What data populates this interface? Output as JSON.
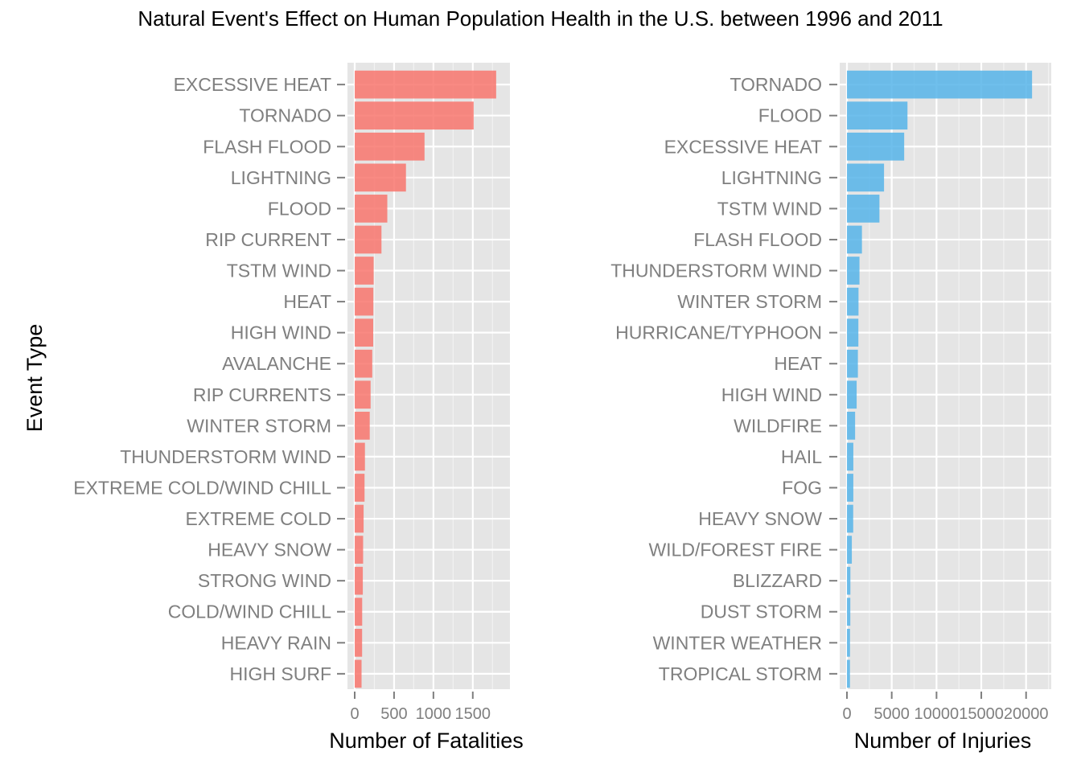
{
  "title": "Natural Event's Effect on Human Population Health in the U.S. between 1996 and 2011",
  "y_axis_title": "Event Type",
  "chart_data": [
    {
      "type": "bar",
      "orientation": "horizontal",
      "xlabel": "Number of Fatalities",
      "ylabel": "Event Type",
      "color": "#F8766D",
      "xlim": [
        0,
        1880
      ],
      "xticks": [
        0,
        500,
        1000,
        1500
      ],
      "xtick_labels": [
        "0",
        "500",
        "1000",
        "1500"
      ],
      "grid": true,
      "categories": [
        "EXCESSIVE HEAT",
        "TORNADO",
        "FLASH FLOOD",
        "LIGHTNING",
        "FLOOD",
        "RIP CURRENT",
        "TSTM WIND",
        "HEAT",
        "HIGH WIND",
        "AVALANCHE",
        "RIP CURRENTS",
        "WINTER STORM",
        "THUNDERSTORM WIND",
        "EXTREME COLD/WIND CHILL",
        "EXTREME COLD",
        "HEAVY SNOW",
        "STRONG WIND",
        "COLD/WIND CHILL",
        "HEAVY RAIN",
        "HIGH SURF"
      ],
      "values": [
        1797,
        1511,
        887,
        651,
        414,
        340,
        241,
        237,
        235,
        223,
        202,
        191,
        130,
        125,
        113,
        107,
        103,
        95,
        94,
        87
      ]
    },
    {
      "type": "bar",
      "orientation": "horizontal",
      "xlabel": "Number of Injuries",
      "ylabel": "",
      "color": "#56B4E9",
      "xlim": [
        0,
        22000
      ],
      "xticks": [
        0,
        5000,
        10000,
        15000,
        20000
      ],
      "xtick_labels": [
        "0",
        "5000",
        "10000",
        "15000",
        "20000"
      ],
      "grid": true,
      "categories": [
        "TORNADO",
        "FLOOD",
        "EXCESSIVE HEAT",
        "LIGHTNING",
        "TSTM WIND",
        "FLASH FLOOD",
        "THUNDERSTORM WIND",
        "WINTER STORM",
        "HURRICANE/TYPHOON",
        "HEAT",
        "HIGH WIND",
        "WILDFIRE",
        "HAIL",
        "FOG",
        "HEAVY SNOW",
        "WILD/FOREST FIRE",
        "BLIZZARD",
        "DUST STORM",
        "WINTER WEATHER",
        "TROPICAL STORM"
      ],
      "values": [
        20667,
        6758,
        6391,
        4141,
        3629,
        1674,
        1400,
        1292,
        1275,
        1222,
        1083,
        911,
        713,
        712,
        698,
        545,
        385,
        376,
        343,
        338
      ]
    }
  ]
}
